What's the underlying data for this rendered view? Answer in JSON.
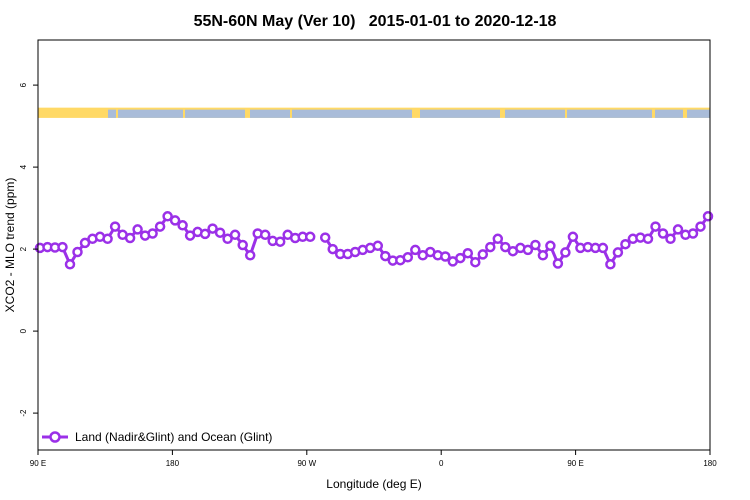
{
  "chart_data": {
    "type": "line",
    "title": "55N-60N May (Ver 10)   2015-01-01 to 2020-12-18",
    "xlabel": "Longitude (deg E)",
    "ylabel": "XCO2 - MLO trend (ppm)",
    "x_ticks": [
      "90 E",
      "180",
      "90 W",
      "0",
      "90 E",
      "180"
    ],
    "y_ticks": [
      "-2",
      "0",
      "2",
      "4",
      "6"
    ],
    "ylim": [
      -2.9,
      7.1
    ],
    "grid": false,
    "legend_position": "bottom-left",
    "map_strip": {
      "description": "land/ocean longitude strip",
      "land_color": "#ffd966",
      "ocean_color": "#a9bcd9"
    },
    "series": [
      {
        "name": "Land (Nadir&Glint) and Ocean (Glint)",
        "color": "#9b30e8",
        "values": [
          2.03,
          2.05,
          2.04,
          2.05,
          1.63,
          1.93,
          2.15,
          2.25,
          2.3,
          2.25,
          2.55,
          2.35,
          2.27,
          2.48,
          2.33,
          2.38,
          2.55,
          2.8,
          2.7,
          2.58,
          2.33,
          2.42,
          2.37,
          2.5,
          2.4,
          2.25,
          2.35,
          2.1,
          1.85,
          2.38,
          2.35,
          2.2,
          2.18,
          2.35,
          2.27,
          2.3,
          2.3,
          null,
          2.28,
          2.0,
          1.88,
          1.88,
          1.93,
          1.98,
          2.03,
          2.08,
          1.83,
          1.72,
          1.73,
          1.8,
          1.98,
          1.85,
          1.93,
          1.85,
          1.82,
          1.7,
          1.78,
          1.9,
          1.68,
          1.87,
          2.05,
          2.25,
          2.05,
          1.95,
          2.03,
          1.98,
          2.1,
          1.85,
          2.08,
          1.65,
          1.92,
          2.3,
          2.03,
          2.05,
          2.03,
          2.03,
          1.63,
          1.92,
          2.12,
          2.25,
          2.28,
          2.25,
          2.55,
          2.38,
          2.25,
          2.48,
          2.35,
          2.38,
          2.55,
          2.8
        ]
      }
    ]
  }
}
